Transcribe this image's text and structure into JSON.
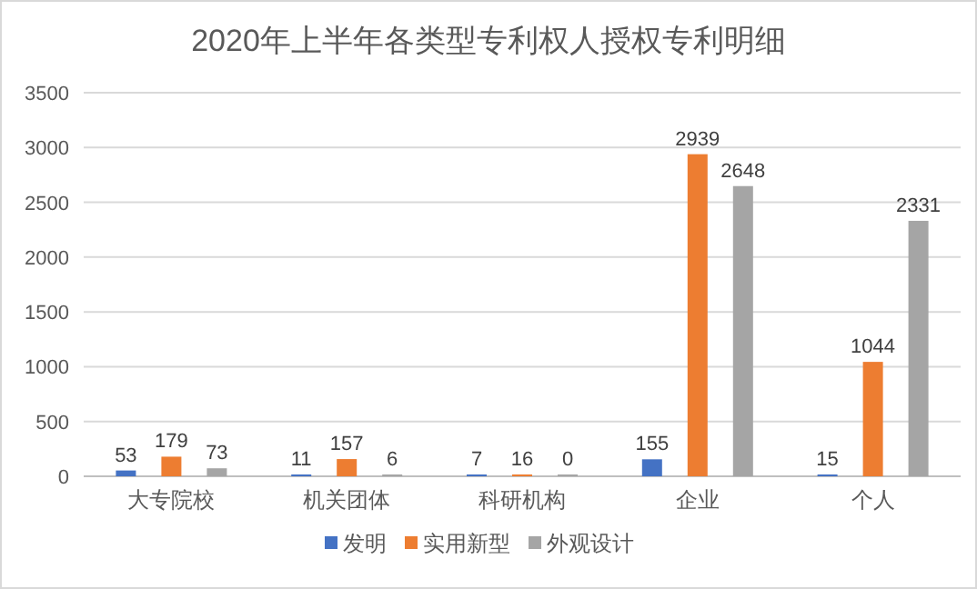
{
  "chart_data": {
    "type": "bar",
    "title": "2020年上半年各类型专利权人授权专利明细",
    "categories": [
      "大专院校",
      "机关团体",
      "科研机构",
      "企业",
      "个人"
    ],
    "series": [
      {
        "name": "发明",
        "color": "#4472c4",
        "values": [
          53,
          11,
          7,
          155,
          15
        ]
      },
      {
        "name": "实用新型",
        "color": "#ed7d31",
        "values": [
          179,
          157,
          16,
          2939,
          1044
        ]
      },
      {
        "name": "外观设计",
        "color": "#a5a5a5",
        "values": [
          73,
          6,
          0,
          2648,
          2331
        ]
      }
    ],
    "ylim": [
      0,
      3500
    ],
    "yticks": [
      0,
      500,
      1000,
      1500,
      2000,
      2500,
      3000,
      3500
    ],
    "grid": "y",
    "legend": "bottom",
    "data_labels": true
  }
}
